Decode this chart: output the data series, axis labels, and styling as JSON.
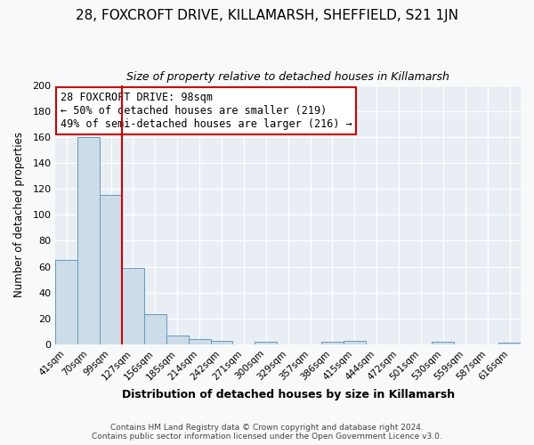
{
  "title1": "28, FOXCROFT DRIVE, KILLAMARSH, SHEFFIELD, S21 1JN",
  "title2": "Size of property relative to detached houses in Killamarsh",
  "xlabel": "Distribution of detached houses by size in Killamarsh",
  "ylabel": "Number of detached properties",
  "bin_labels": [
    "41sqm",
    "70sqm",
    "99sqm",
    "127sqm",
    "156sqm",
    "185sqm",
    "214sqm",
    "242sqm",
    "271sqm",
    "300sqm",
    "329sqm",
    "357sqm",
    "386sqm",
    "415sqm",
    "444sqm",
    "472sqm",
    "501sqm",
    "530sqm",
    "559sqm",
    "587sqm",
    "616sqm"
  ],
  "bar_heights": [
    65,
    160,
    115,
    59,
    23,
    7,
    4,
    3,
    0,
    2,
    0,
    0,
    2,
    3,
    0,
    0,
    0,
    2,
    0,
    0,
    1
  ],
  "bar_color": "#ccdce8",
  "bar_edge_color": "#6699bb",
  "vline_color": "#cc0000",
  "ylim": [
    0,
    200
  ],
  "yticks": [
    0,
    20,
    40,
    60,
    80,
    100,
    120,
    140,
    160,
    180,
    200
  ],
  "annotation_title": "28 FOXCROFT DRIVE: 98sqm",
  "annotation_line1": "← 50% of detached houses are smaller (219)",
  "annotation_line2": "49% of semi-detached houses are larger (216) →",
  "footer1": "Contains HM Land Registry data © Crown copyright and database right 2024.",
  "footer2": "Contains public sector information licensed under the Open Government Licence v3.0.",
  "bg_color": "#f7f9fb",
  "plot_bg_color": "#e8eef4",
  "grid_color": "#ffffff",
  "title1_fontsize": 11,
  "title2_fontsize": 9,
  "annot_box_color": "#ffffff",
  "annot_box_edge": "#cc0000",
  "xlabel_fontsize": 9,
  "ylabel_fontsize": 8.5,
  "footer_fontsize": 6.5,
  "tick_fontsize": 7.5,
  "ytick_fontsize": 8
}
